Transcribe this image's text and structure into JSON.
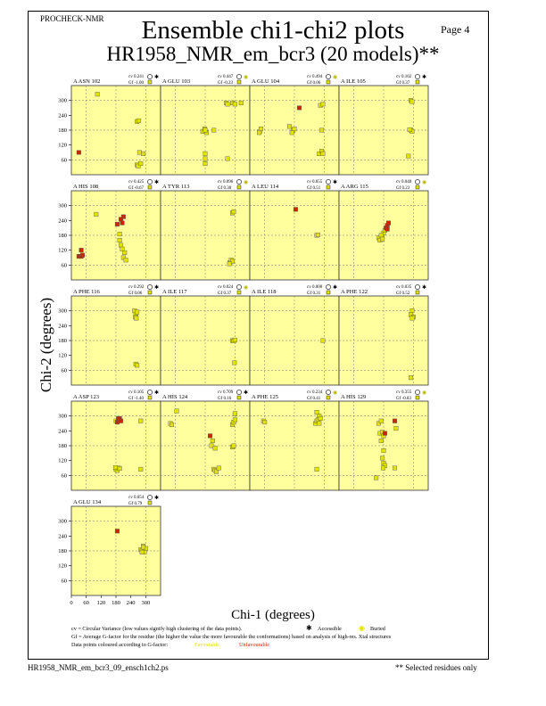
{
  "header": "PROCHECK-NMR",
  "page_label": "Page  4",
  "title_line1": "Ensemble chi1-chi2 plots",
  "title_line2": "HR1958_NMR_em_bcr3 (20 models)**",
  "legend": {
    "line1": "cv = Circular Variance (low values signify high clustering of the data points).",
    "accessible": "Accessible",
    "buried": "Buried",
    "line2": "Gf = Average G-factor for the residue (the higher the value the more favourable the conformations) based on analysis of high-res. Xtal structures",
    "line3": "Data points coloured according to G-factor:",
    "favourable": "Favourable",
    "unfavourable": "Unfavourable"
  },
  "footer_left": "HR1958_NMR_em_bcr3_09_ensch1ch2.ps",
  "footer_right": "** Selected residues only",
  "colors": {
    "panel_bg": "#ffff9e",
    "favourable": "#e2e200",
    "unfavourable": "#c82800",
    "grid": "#707070"
  },
  "chart_data": {
    "type": "scatter",
    "xlabel": "Chi-1 (degrees)",
    "ylabel": "Chi-2 (degrees)",
    "xlim": [
      0,
      360
    ],
    "ylim": [
      0,
      360
    ],
    "xticks": [
      0,
      60,
      120,
      180,
      240,
      300
    ],
    "yticks": [
      60,
      120,
      180,
      240,
      300
    ],
    "panels": [
      {
        "residue": "A ASN 102",
        "cv": "cv 0.241",
        "gf": "Gf -1.00",
        "access": "accessible",
        "points": [
          [
            30,
            90
          ],
          [
            105,
            325
          ],
          [
            265,
            40
          ],
          [
            270,
            35
          ],
          [
            280,
            45
          ],
          [
            275,
            90
          ],
          [
            290,
            85
          ],
          [
            265,
            215
          ],
          [
            272,
            218
          ]
        ]
      },
      {
        "residue": "A GLU 103",
        "cv": "cv 0.447",
        "gf": "Gf -0.23",
        "access": "buried",
        "points": [
          [
            170,
            175
          ],
          [
            178,
            185
          ],
          [
            185,
            170
          ],
          [
            180,
            180
          ],
          [
            215,
            180
          ],
          [
            180,
            85
          ],
          [
            180,
            45
          ],
          [
            180,
            65
          ],
          [
            265,
            290
          ],
          [
            270,
            285
          ],
          [
            290,
            290
          ],
          [
            325,
            290
          ],
          [
            270,
            65
          ],
          [
            300,
            285
          ]
        ]
      },
      {
        "residue": "A GLU 104",
        "cv": "cv 0.494",
        "gf": "Gf 0.06",
        "access": "buried",
        "points": [
          [
            40,
            175
          ],
          [
            45,
            185
          ],
          [
            38,
            170
          ],
          [
            175,
            180
          ],
          [
            180,
            185
          ],
          [
            160,
            195
          ],
          [
            170,
            170
          ],
          [
            200,
            270
          ],
          [
            290,
            180
          ],
          [
            285,
            280
          ],
          [
            295,
            285
          ],
          [
            280,
            85
          ],
          [
            290,
            95
          ],
          [
            295,
            85
          ]
        ]
      },
      {
        "residue": "A ILE 105",
        "cv": "cv 0.102",
        "gf": "Gf 0.37",
        "access": "accessible",
        "points": [
          [
            290,
            300
          ],
          [
            295,
            295
          ],
          [
            290,
            180
          ],
          [
            295,
            175
          ],
          [
            285,
            182
          ],
          [
            280,
            75
          ]
        ]
      },
      {
        "residue": "A HIS 108",
        "cv": "cv 0.425",
        "gf": "Gf -0.67",
        "access": "accessible",
        "points": [
          [
            30,
            95
          ],
          [
            40,
            95
          ],
          [
            45,
            100
          ],
          [
            40,
            120
          ],
          [
            100,
            265
          ],
          [
            185,
            225
          ],
          [
            195,
            185
          ],
          [
            200,
            245
          ],
          [
            205,
            230
          ],
          [
            210,
            255
          ],
          [
            195,
            160
          ],
          [
            200,
            140
          ],
          [
            205,
            125
          ],
          [
            210,
            90
          ],
          [
            215,
            110
          ],
          [
            220,
            80
          ]
        ]
      },
      {
        "residue": "A TYR 113",
        "cv": "cv 0.096",
        "gf": "Gf 0.30",
        "access": "buried",
        "points": [
          [
            280,
            70
          ],
          [
            285,
            80
          ],
          [
            290,
            75
          ],
          [
            278,
            65
          ],
          [
            290,
            270
          ],
          [
            295,
            275
          ]
        ]
      },
      {
        "residue": "A LEU 114",
        "cv": "cv 0.055",
        "gf": "Gf 0.51",
        "access": "accessible",
        "points": [
          [
            185,
            285
          ],
          [
            270,
            180
          ],
          [
            275,
            182
          ]
        ]
      },
      {
        "residue": "A ARG 115",
        "cv": "cv 0.040",
        "gf": "Gf 0.23",
        "access": "buried",
        "points": [
          [
            160,
            170
          ],
          [
            165,
            160
          ],
          [
            175,
            175
          ],
          [
            180,
            190
          ],
          [
            185,
            200
          ],
          [
            190,
            210
          ],
          [
            195,
            220
          ],
          [
            200,
            230
          ],
          [
            170,
            180
          ],
          [
            175,
            165
          ],
          [
            195,
            205
          ]
        ]
      },
      {
        "residue": "A PHE 116",
        "cv": "cv 0.292",
        "gf": "Gf 0.06",
        "access": "accessible",
        "points": [
          [
            255,
            300
          ],
          [
            260,
            285
          ],
          [
            258,
            275
          ],
          [
            262,
            270
          ],
          [
            265,
            295
          ],
          [
            260,
            85
          ],
          [
            265,
            80
          ]
        ]
      },
      {
        "residue": "A ILE 117",
        "cv": "cv 0.024",
        "gf": "Gf 0.37",
        "access": "buried",
        "points": [
          [
            290,
            180
          ],
          [
            295,
            178
          ],
          [
            300,
            182
          ],
          [
            298,
            90
          ]
        ]
      },
      {
        "residue": "A ILE 118",
        "cv": "cv 0.000",
        "gf": "Gf 0.31",
        "access": "accessible",
        "points": [
          [
            295,
            180
          ]
        ]
      },
      {
        "residue": "A PHE 122",
        "cv": "cv 0.035",
        "gf": "Gf 0.52",
        "access": "accessible",
        "points": [
          [
            295,
            300
          ],
          [
            290,
            285
          ],
          [
            300,
            275
          ],
          [
            295,
            270
          ],
          [
            290,
            30
          ]
        ]
      },
      {
        "residue": "A ASP 123",
        "cv": "cv 0.105",
        "gf": "Gf -1.40",
        "access": "accessible",
        "points": [
          [
            180,
            280
          ],
          [
            185,
            275
          ],
          [
            190,
            285
          ],
          [
            195,
            290
          ],
          [
            200,
            280
          ],
          [
            190,
            290
          ],
          [
            180,
            85
          ],
          [
            185,
            80
          ],
          [
            190,
            90
          ],
          [
            195,
            88
          ],
          [
            178,
            92
          ],
          [
            280,
            280
          ],
          [
            280,
            85
          ]
        ]
      },
      {
        "residue": "A HIS 124",
        "cv": "cv 0.709",
        "gf": "Gf 0.16",
        "access": "accessible",
        "points": [
          [
            65,
            320
          ],
          [
            40,
            270
          ],
          [
            45,
            265
          ],
          [
            200,
            220
          ],
          [
            205,
            180
          ],
          [
            210,
            200
          ],
          [
            220,
            170
          ],
          [
            215,
            85
          ],
          [
            220,
            80
          ],
          [
            225,
            75
          ],
          [
            235,
            90
          ],
          [
            290,
            265
          ],
          [
            295,
            275
          ],
          [
            300,
            285
          ],
          [
            300,
            310
          ],
          [
            290,
            175
          ],
          [
            295,
            180
          ]
        ]
      },
      {
        "residue": "A PHE 125",
        "cv": "cv 0.234",
        "gf": "Gf 0.41",
        "access": "buried",
        "points": [
          [
            55,
            280
          ],
          [
            60,
            275
          ],
          [
            265,
            270
          ],
          [
            270,
            280
          ],
          [
            275,
            285
          ],
          [
            280,
            300
          ],
          [
            270,
            315
          ],
          [
            285,
            290
          ],
          [
            280,
            270
          ],
          [
            270,
            85
          ]
        ]
      },
      {
        "residue": "A HIS 129",
        "cv": "cv 0.355",
        "gf": "Gf -0.83",
        "access": "buried",
        "points": [
          [
            160,
            270
          ],
          [
            165,
            230
          ],
          [
            175,
            235
          ],
          [
            180,
            220
          ],
          [
            170,
            200
          ],
          [
            185,
            230
          ],
          [
            180,
            160
          ],
          [
            175,
            130
          ],
          [
            180,
            110
          ],
          [
            185,
            100
          ],
          [
            178,
            90
          ],
          [
            150,
            50
          ],
          [
            225,
            90
          ],
          [
            225,
            280
          ],
          [
            230,
            250
          ],
          [
            170,
            280
          ]
        ]
      },
      {
        "residue": "A GLU 134",
        "cv": "cv 0.054",
        "gf": "Gf 0.79",
        "access": "accessible",
        "points": [
          [
            185,
            260
          ],
          [
            280,
            185
          ],
          [
            285,
            180
          ],
          [
            290,
            200
          ],
          [
            295,
            175
          ],
          [
            300,
            190
          ],
          [
            290,
            195
          ],
          [
            285,
            175
          ]
        ]
      }
    ]
  }
}
